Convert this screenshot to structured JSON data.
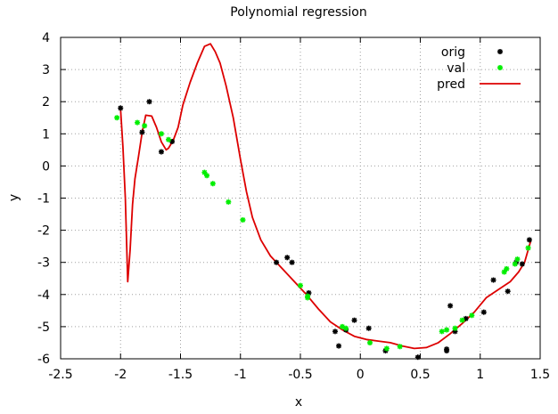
{
  "chart_data": {
    "type": "scatter",
    "title": "Polynomial regression",
    "xlabel": "x",
    "ylabel": "y",
    "xlim": [
      -2.5,
      1.5
    ],
    "ylim": [
      -6,
      4
    ],
    "xticks": [
      -2.5,
      -2,
      -1.5,
      -1,
      -0.5,
      0,
      0.5,
      1,
      1.5
    ],
    "xtick_labels": [
      "-2.5",
      "-2",
      "-1.5",
      "-1",
      "-0.5",
      "0",
      "0.5",
      "1",
      "1.5"
    ],
    "yticks": [
      -6,
      -5,
      -4,
      -3,
      -2,
      -1,
      0,
      1,
      2,
      3,
      4
    ],
    "ytick_labels": [
      "-6",
      "-5",
      "-4",
      "-3",
      "-2",
      "-1",
      "0",
      "1",
      "2",
      "3",
      "4"
    ],
    "grid": true,
    "legend_position": "top-right",
    "series": [
      {
        "name": "orig",
        "kind": "points",
        "color": "#000000",
        "points": [
          [
            -2.0,
            1.8
          ],
          [
            -1.82,
            1.05
          ],
          [
            -1.76,
            2.0
          ],
          [
            -1.66,
            0.44
          ],
          [
            -1.57,
            0.76
          ],
          [
            -0.7,
            -3.0
          ],
          [
            -0.61,
            -2.85
          ],
          [
            -0.57,
            -3.0
          ],
          [
            -0.43,
            -3.95
          ],
          [
            -0.21,
            -5.15
          ],
          [
            -0.18,
            -5.6
          ],
          [
            -0.12,
            -5.1
          ],
          [
            -0.05,
            -4.8
          ],
          [
            0.07,
            -5.05
          ],
          [
            0.21,
            -5.75
          ],
          [
            0.48,
            -5.95
          ],
          [
            0.72,
            -5.7
          ],
          [
            0.72,
            -5.75
          ],
          [
            0.75,
            -4.35
          ],
          [
            0.79,
            -5.15
          ],
          [
            0.88,
            -4.75
          ],
          [
            1.03,
            -4.55
          ],
          [
            1.11,
            -3.55
          ],
          [
            1.23,
            -3.9
          ],
          [
            1.3,
            -3.0
          ],
          [
            1.35,
            -3.05
          ],
          [
            1.41,
            -2.3
          ]
        ]
      },
      {
        "name": "val",
        "kind": "points",
        "color": "#00ee00",
        "points": [
          [
            -2.03,
            1.5
          ],
          [
            -1.86,
            1.35
          ],
          [
            -1.8,
            1.25
          ],
          [
            -1.66,
            1.0
          ],
          [
            -1.6,
            0.82
          ],
          [
            -1.3,
            -0.2
          ],
          [
            -1.28,
            -0.3
          ],
          [
            -1.23,
            -0.55
          ],
          [
            -1.1,
            -1.12
          ],
          [
            -0.98,
            -1.68
          ],
          [
            -0.5,
            -3.72
          ],
          [
            -0.44,
            -4.05
          ],
          [
            -0.44,
            -4.1
          ],
          [
            -0.15,
            -5.0
          ],
          [
            -0.12,
            -5.05
          ],
          [
            0.08,
            -5.5
          ],
          [
            0.22,
            -5.68
          ],
          [
            0.33,
            -5.62
          ],
          [
            0.68,
            -5.15
          ],
          [
            0.72,
            -5.1
          ],
          [
            0.79,
            -5.05
          ],
          [
            0.85,
            -4.8
          ],
          [
            0.93,
            -4.65
          ],
          [
            1.2,
            -3.3
          ],
          [
            1.22,
            -3.2
          ],
          [
            1.29,
            -3.05
          ],
          [
            1.31,
            -2.9
          ],
          [
            1.4,
            -2.55
          ]
        ]
      },
      {
        "name": "pred",
        "kind": "line",
        "color": "#dd0000",
        "points": [
          [
            -2.0,
            1.75
          ],
          [
            -1.98,
            0.6
          ],
          [
            -1.96,
            -1.0
          ],
          [
            -1.94,
            -3.6
          ],
          [
            -1.92,
            -2.6
          ],
          [
            -1.9,
            -1.2
          ],
          [
            -1.88,
            -0.4
          ],
          [
            -1.85,
            0.3
          ],
          [
            -1.82,
            1.05
          ],
          [
            -1.79,
            1.58
          ],
          [
            -1.74,
            1.55
          ],
          [
            -1.7,
            1.2
          ],
          [
            -1.66,
            0.75
          ],
          [
            -1.62,
            0.5
          ],
          [
            -1.6,
            0.55
          ],
          [
            -1.56,
            0.8
          ],
          [
            -1.52,
            1.2
          ],
          [
            -1.48,
            1.9
          ],
          [
            -1.42,
            2.6
          ],
          [
            -1.36,
            3.2
          ],
          [
            -1.3,
            3.72
          ],
          [
            -1.25,
            3.8
          ],
          [
            -1.21,
            3.55
          ],
          [
            -1.17,
            3.2
          ],
          [
            -1.12,
            2.5
          ],
          [
            -1.06,
            1.5
          ],
          [
            -1.0,
            0.2
          ],
          [
            -0.95,
            -0.8
          ],
          [
            -0.9,
            -1.6
          ],
          [
            -0.83,
            -2.3
          ],
          [
            -0.75,
            -2.8
          ],
          [
            -0.65,
            -3.2
          ],
          [
            -0.55,
            -3.6
          ],
          [
            -0.45,
            -4.0
          ],
          [
            -0.35,
            -4.45
          ],
          [
            -0.25,
            -4.85
          ],
          [
            -0.15,
            -5.1
          ],
          [
            -0.05,
            -5.3
          ],
          [
            0.05,
            -5.4
          ],
          [
            0.15,
            -5.45
          ],
          [
            0.25,
            -5.5
          ],
          [
            0.35,
            -5.6
          ],
          [
            0.45,
            -5.68
          ],
          [
            0.55,
            -5.65
          ],
          [
            0.65,
            -5.5
          ],
          [
            0.75,
            -5.22
          ],
          [
            0.85,
            -4.9
          ],
          [
            0.95,
            -4.55
          ],
          [
            1.05,
            -4.1
          ],
          [
            1.15,
            -3.85
          ],
          [
            1.25,
            -3.6
          ],
          [
            1.32,
            -3.3
          ],
          [
            1.37,
            -3.0
          ],
          [
            1.42,
            -2.35
          ]
        ]
      }
    ]
  }
}
